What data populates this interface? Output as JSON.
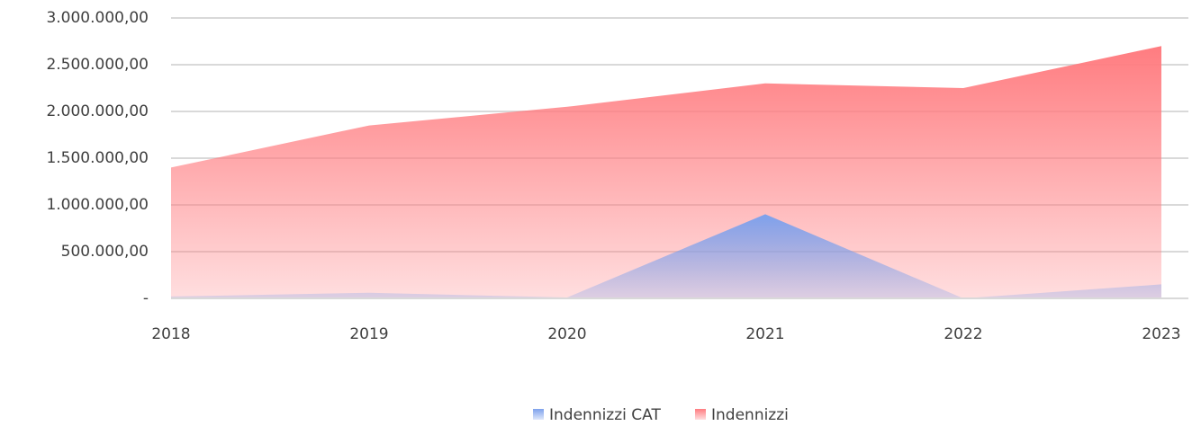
{
  "chart_data": {
    "type": "area",
    "categories": [
      "2018",
      "2019",
      "2020",
      "2021",
      "2022",
      "2023"
    ],
    "series": [
      {
        "name": "Indennizzi",
        "color": "#ff7c80",
        "values": [
          1400000,
          1850000,
          2050000,
          2300000,
          2250000,
          2700000
        ]
      },
      {
        "name": "Indennizzi CAT",
        "color": "#7ea1ec",
        "values": [
          20000,
          60000,
          10000,
          900000,
          0,
          150000
        ]
      }
    ],
    "ylim": [
      0,
      3000000
    ],
    "yticks": [
      {
        "value": 0,
        "label": "-"
      },
      {
        "value": 500000,
        "label": "500.000,00"
      },
      {
        "value": 1000000,
        "label": "1.000.000,00"
      },
      {
        "value": 1500000,
        "label": "1.500.000,00"
      },
      {
        "value": 2000000,
        "label": "2.000.000,00"
      },
      {
        "value": 2500000,
        "label": "2.500.000,00"
      },
      {
        "value": 3000000,
        "label": "3.000.000,00"
      }
    ],
    "legend_order": [
      "Indennizzi CAT",
      "Indennizzi"
    ],
    "grid": true
  }
}
